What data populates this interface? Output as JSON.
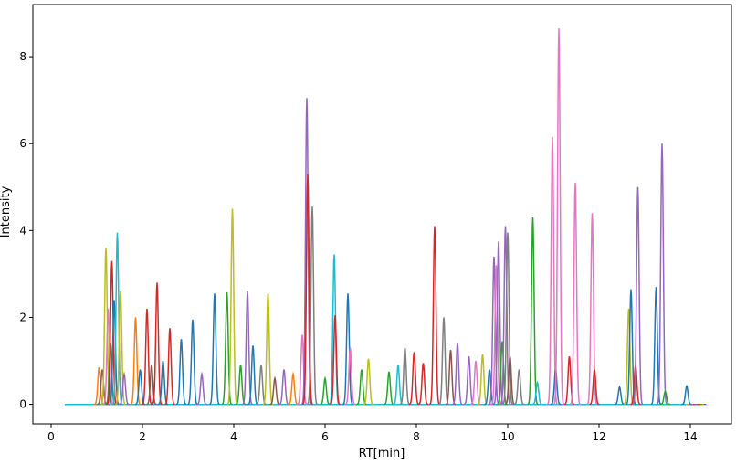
{
  "chart_data": {
    "type": "line",
    "title": "",
    "xlabel": "RT[min]",
    "ylabel": "Intensity",
    "xlim": [
      -0.4,
      14.9
    ],
    "ylim": [
      -0.45,
      9.2
    ],
    "xticks": [
      0,
      2,
      4,
      6,
      8,
      10,
      12,
      14
    ],
    "yticks": [
      0,
      2,
      4,
      6,
      8
    ],
    "grid": false,
    "legend": "none",
    "colors": [
      "#1f77b4",
      "#ff7f0e",
      "#2ca02c",
      "#d62728",
      "#9467bd",
      "#8c564b",
      "#e377c2",
      "#7f7f7f",
      "#bcbd22",
      "#17becf"
    ],
    "baseline_range": [
      0.3,
      14.35
    ],
    "peaks": [
      {
        "rt": 1.05,
        "h": 0.85,
        "c": 1
      },
      {
        "rt": 1.12,
        "h": 0.8,
        "c": 5
      },
      {
        "rt": 1.2,
        "h": 3.6,
        "c": 8
      },
      {
        "rt": 1.25,
        "h": 2.2,
        "c": 6
      },
      {
        "rt": 1.3,
        "h": 1.4,
        "c": 2
      },
      {
        "rt": 1.33,
        "h": 3.3,
        "c": 3
      },
      {
        "rt": 1.38,
        "h": 2.4,
        "c": 0
      },
      {
        "rt": 1.45,
        "h": 3.95,
        "c": 9
      },
      {
        "rt": 1.52,
        "h": 2.6,
        "c": 8
      },
      {
        "rt": 1.6,
        "h": 0.7,
        "c": 4
      },
      {
        "rt": 1.85,
        "h": 2.0,
        "c": 1
      },
      {
        "rt": 1.95,
        "h": 0.8,
        "c": 0
      },
      {
        "rt": 2.1,
        "h": 2.2,
        "c": 3
      },
      {
        "rt": 2.2,
        "h": 0.9,
        "c": 5
      },
      {
        "rt": 2.32,
        "h": 2.8,
        "c": 3
      },
      {
        "rt": 2.45,
        "h": 1.0,
        "c": 0
      },
      {
        "rt": 2.6,
        "h": 1.75,
        "c": 3
      },
      {
        "rt": 2.85,
        "h": 1.5,
        "c": 0
      },
      {
        "rt": 3.1,
        "h": 1.95,
        "c": 0
      },
      {
        "rt": 3.3,
        "h": 0.7,
        "c": 4
      },
      {
        "rt": 3.58,
        "h": 2.55,
        "c": 0
      },
      {
        "rt": 3.85,
        "h": 2.58,
        "c": 2
      },
      {
        "rt": 3.97,
        "h": 4.5,
        "c": 8
      },
      {
        "rt": 4.15,
        "h": 0.9,
        "c": 2
      },
      {
        "rt": 4.3,
        "h": 2.6,
        "c": 4
      },
      {
        "rt": 4.42,
        "h": 1.35,
        "c": 0
      },
      {
        "rt": 4.6,
        "h": 0.9,
        "c": 7
      },
      {
        "rt": 4.75,
        "h": 2.55,
        "c": 8
      },
      {
        "rt": 4.9,
        "h": 0.6,
        "c": 5
      },
      {
        "rt": 5.1,
        "h": 0.8,
        "c": 4
      },
      {
        "rt": 5.3,
        "h": 0.7,
        "c": 1
      },
      {
        "rt": 5.5,
        "h": 1.6,
        "c": 6
      },
      {
        "rt": 5.6,
        "h": 7.05,
        "c": 4
      },
      {
        "rt": 5.62,
        "h": 5.3,
        "c": 3
      },
      {
        "rt": 5.72,
        "h": 4.55,
        "c": 7
      },
      {
        "rt": 6.0,
        "h": 0.6,
        "c": 2
      },
      {
        "rt": 6.2,
        "h": 3.45,
        "c": 9
      },
      {
        "rt": 6.22,
        "h": 2.05,
        "c": 3
      },
      {
        "rt": 6.5,
        "h": 2.55,
        "c": 0
      },
      {
        "rt": 6.55,
        "h": 1.3,
        "c": 6
      },
      {
        "rt": 6.8,
        "h": 0.8,
        "c": 2
      },
      {
        "rt": 6.95,
        "h": 1.05,
        "c": 8
      },
      {
        "rt": 7.4,
        "h": 0.75,
        "c": 2
      },
      {
        "rt": 7.6,
        "h": 0.9,
        "c": 9
      },
      {
        "rt": 7.75,
        "h": 1.3,
        "c": 7
      },
      {
        "rt": 7.95,
        "h": 1.2,
        "c": 3
      },
      {
        "rt": 8.15,
        "h": 0.95,
        "c": 3
      },
      {
        "rt": 8.4,
        "h": 4.1,
        "c": 3
      },
      {
        "rt": 8.6,
        "h": 2.0,
        "c": 7
      },
      {
        "rt": 8.75,
        "h": 1.25,
        "c": 5
      },
      {
        "rt": 8.9,
        "h": 1.4,
        "c": 4
      },
      {
        "rt": 9.15,
        "h": 1.1,
        "c": 4
      },
      {
        "rt": 9.3,
        "h": 1.0,
        "c": 6
      },
      {
        "rt": 9.45,
        "h": 1.15,
        "c": 8
      },
      {
        "rt": 9.6,
        "h": 0.8,
        "c": 0
      },
      {
        "rt": 9.7,
        "h": 3.4,
        "c": 4
      },
      {
        "rt": 9.75,
        "h": 3.2,
        "c": 6
      },
      {
        "rt": 9.8,
        "h": 3.75,
        "c": 4
      },
      {
        "rt": 9.88,
        "h": 1.45,
        "c": 2
      },
      {
        "rt": 9.95,
        "h": 4.1,
        "c": 4
      },
      {
        "rt": 10.0,
        "h": 3.95,
        "c": 7
      },
      {
        "rt": 10.05,
        "h": 1.1,
        "c": 5
      },
      {
        "rt": 10.25,
        "h": 0.8,
        "c": 7
      },
      {
        "rt": 10.55,
        "h": 4.3,
        "c": 2
      },
      {
        "rt": 10.65,
        "h": 0.5,
        "c": 9
      },
      {
        "rt": 10.98,
        "h": 6.15,
        "c": 6
      },
      {
        "rt": 11.05,
        "h": 0.8,
        "c": 0
      },
      {
        "rt": 11.12,
        "h": 8.65,
        "c": 6
      },
      {
        "rt": 11.35,
        "h": 1.1,
        "c": 3
      },
      {
        "rt": 11.48,
        "h": 5.1,
        "c": 6
      },
      {
        "rt": 11.85,
        "h": 4.4,
        "c": 6
      },
      {
        "rt": 11.9,
        "h": 0.8,
        "c": 3
      },
      {
        "rt": 12.45,
        "h": 0.4,
        "c": 0
      },
      {
        "rt": 12.65,
        "h": 2.2,
        "c": 8
      },
      {
        "rt": 12.7,
        "h": 2.65,
        "c": 0
      },
      {
        "rt": 12.8,
        "h": 0.9,
        "c": 3
      },
      {
        "rt": 12.85,
        "h": 5.0,
        "c": 4
      },
      {
        "rt": 13.25,
        "h": 2.7,
        "c": 0
      },
      {
        "rt": 13.38,
        "h": 6.0,
        "c": 4
      },
      {
        "rt": 13.45,
        "h": 0.3,
        "c": 2
      },
      {
        "rt": 13.92,
        "h": 0.42,
        "c": 0
      }
    ]
  }
}
